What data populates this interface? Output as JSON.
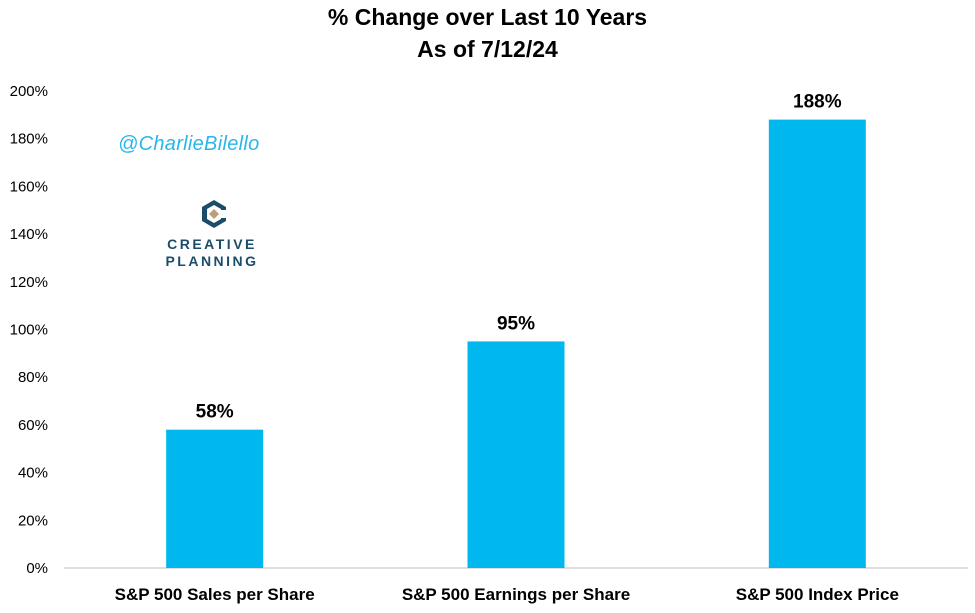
{
  "chart_data": {
    "type": "bar",
    "title": "% Change over Last 10 Years",
    "subtitle": "As of 7/12/24",
    "categories": [
      "S&P 500 Sales per Share",
      "S&P 500 Earnings per Share",
      "S&P 500 Index Price"
    ],
    "values": [
      58,
      95,
      188
    ],
    "data_labels": [
      "58%",
      "95%",
      "188%"
    ],
    "ylim": [
      0,
      200
    ],
    "yticks": [
      0,
      20,
      40,
      60,
      80,
      100,
      120,
      140,
      160,
      180,
      200
    ],
    "ytick_labels": [
      "0%",
      "20%",
      "40%",
      "60%",
      "80%",
      "100%",
      "120%",
      "140%",
      "160%",
      "180%",
      "200%"
    ],
    "bar_color": "#00b8ee",
    "grid": false,
    "legend": "none"
  },
  "watermark": {
    "handle": "@CharlieBilello",
    "logo_line1": "CREATIVE",
    "logo_line2": "PLANNING"
  },
  "colors": {
    "handle": "#29b6e8",
    "logo_navy": "#1b4d6b",
    "logo_tan": "#b8a07a"
  }
}
